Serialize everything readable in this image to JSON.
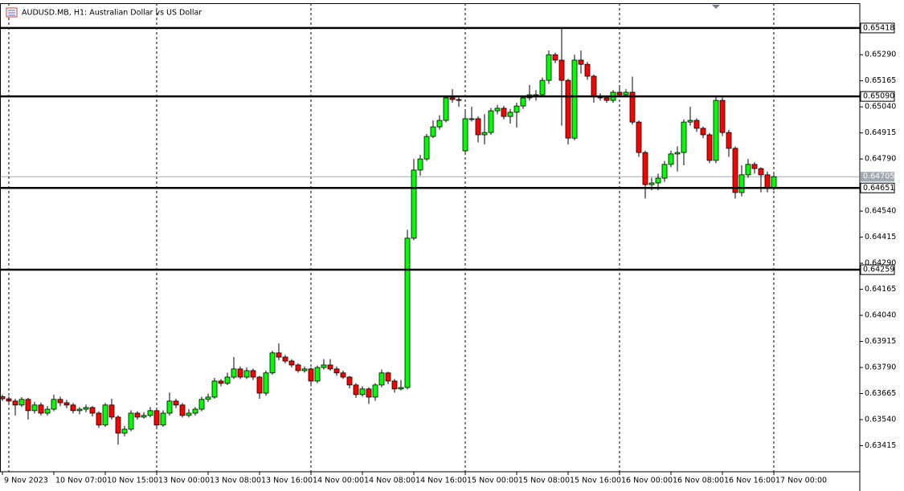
{
  "chart_data": {
    "type": "candlestick",
    "title": "AUDUSD.MB, H1:  Australian Dollar vs US Dollar",
    "up_color": "#00ff00",
    "down_color": "#ff0000",
    "level_color": "#000000",
    "last_color": "#a0a8b0",
    "ylim": [
      0.6329,
      0.65537
    ],
    "yticks": [
      0.63415,
      {
        "value": 0.6354,
        "label": "0.63540"
      },
      0.63665,
      {
        "value": 0.6379,
        "label": "0.63790"
      },
      0.63915,
      {
        "value": 0.6404,
        "label": "0.64040"
      },
      0.64165,
      {
        "value": 0.6429,
        "label": "0.64290"
      },
      0.64415,
      {
        "value": 0.6454,
        "label": "0.64540"
      },
      {
        "value": 0.6479,
        "label": "0.64790"
      },
      0.64915,
      {
        "value": 0.6504,
        "label": "0.65040"
      },
      0.65165,
      {
        "value": 0.6529,
        "label": "0.65290"
      }
    ],
    "levels": [
      0.65418,
      {
        "value": 0.6509,
        "label": "0.65090"
      },
      0.64651,
      0.64259
    ],
    "last_price": 0.64705,
    "categories": [
      "9 Nov 2023",
      null,
      null,
      null,
      null,
      null,
      null,
      null,
      "10 Nov 07:00",
      null,
      null,
      null,
      null,
      null,
      null,
      null,
      "10 Nov 15:00",
      null,
      null,
      null,
      null,
      null,
      null,
      null,
      "13 Nov 00:00",
      null,
      null,
      null,
      null,
      null,
      null,
      null,
      "13 Nov 08:00",
      null,
      null,
      null,
      null,
      null,
      null,
      null,
      "13 Nov 16:00",
      null,
      null,
      null,
      null,
      null,
      null,
      null,
      "14 Nov 00:00",
      null,
      null,
      null,
      null,
      null,
      null,
      null,
      "14 Nov 08:00",
      null,
      null,
      null,
      null,
      null,
      null,
      null,
      "14 Nov 16:00",
      null,
      null,
      null,
      null,
      null,
      null,
      null,
      "15 Nov 00:00",
      null,
      null,
      null,
      null,
      null,
      null,
      null,
      "15 Nov 08:00",
      null,
      null,
      null,
      null,
      null,
      null,
      null,
      "15 Nov 16:00",
      null,
      null,
      null,
      null,
      null,
      null,
      null,
      "16 Nov 00:00",
      null,
      null,
      null,
      null,
      null,
      null,
      null,
      "16 Nov 08:00",
      null,
      null,
      null,
      null,
      null,
      null,
      null,
      "16 Nov 16:00",
      null,
      null,
      null,
      null,
      null,
      null,
      null,
      "17 Nov 00:00"
    ],
    "open": [
      0.6365,
      0.6364,
      0.63629,
      0.6361,
      0.63637,
      0.63583,
      0.6361,
      0.63571,
      0.6359,
      0.63637,
      0.63621,
      0.6361,
      0.63583,
      0.6359,
      0.63598,
      0.63571,
      0.63514,
      0.6361,
      0.63552,
      0.63475,
      0.63494,
      0.63571,
      0.63552,
      0.6356,
      0.63583,
      0.63514,
      0.63571,
      0.63629,
      0.6361,
      0.6356,
      0.63571,
      0.6359,
      0.63637,
      0.63648,
      0.63725,
      0.63714,
      0.63744,
      0.63783,
      0.63744,
      0.63775,
      0.63744,
      0.63667,
      0.63764,
      0.6386,
      0.6384,
      0.63821,
      0.63802,
      0.63775,
      0.63783,
      0.63725,
      0.6379,
      0.63802,
      0.63783,
      0.63764,
      0.63744,
      0.63706,
      0.6366,
      0.63687,
      0.63648,
      0.63706,
      0.63764,
      0.63725,
      0.63687,
      0.63694,
      0.6441,
      0.64737,
      0.6479,
      0.64898,
      0.64944,
      0.64975,
      0.65083,
      0.65075,
      0.64829,
      0.64983,
      0.64983,
      0.64906,
      0.64917,
      0.65021,
      0.65033,
      0.64994,
      0.65014,
      0.65044,
      0.65083,
      0.65098,
      0.65098,
      0.65167,
      0.6529,
      0.65264,
      0.65167,
      0.6489,
      0.65264,
      0.65244,
      0.65187,
      0.6509,
      0.65083,
      0.65071,
      0.6511,
      0.65098,
      0.6511,
      0.64967,
      0.64821,
      0.64667,
      0.64675,
      0.64698,
      0.64764,
      0.64814,
      0.64821,
      0.64967,
      0.64975,
      0.64937,
      0.64906,
      0.64783,
      0.65071,
      0.64917,
      0.64841,
      0.64629,
      0.64714,
      0.64764,
      0.64744,
      0.64714,
      0.64648
    ],
    "high": [
      0.6366,
      0.63652,
      0.6364,
      0.63648,
      0.63645,
      0.63625,
      0.63622,
      0.63605,
      0.6366,
      0.6365,
      0.63635,
      0.6362,
      0.636,
      0.63612,
      0.63605,
      0.6358,
      0.6362,
      0.6364,
      0.6356,
      0.6351,
      0.63585,
      0.6358,
      0.63575,
      0.636,
      0.63595,
      0.63585,
      0.6367,
      0.6364,
      0.6362,
      0.6359,
      0.636,
      0.6365,
      0.63665,
      0.6374,
      0.63735,
      0.63765,
      0.6384,
      0.63795,
      0.6379,
      0.63785,
      0.6375,
      0.63775,
      0.6387,
      0.63905,
      0.6385,
      0.6383,
      0.6381,
      0.63795,
      0.6379,
      0.638,
      0.6383,
      0.6383,
      0.63795,
      0.63775,
      0.6375,
      0.63715,
      0.637,
      0.63695,
      0.63715,
      0.6378,
      0.6377,
      0.63735,
      0.6373,
      0.6445,
      0.6479,
      0.6481,
      0.6491,
      0.64975,
      0.65,
      0.65095,
      0.65125,
      0.65085,
      0.6502,
      0.6504,
      0.64995,
      0.65005,
      0.65035,
      0.6505,
      0.65045,
      0.6503,
      0.6506,
      0.65095,
      0.65145,
      0.6512,
      0.6518,
      0.6531,
      0.653,
      0.65418,
      0.65175,
      0.6529,
      0.6531,
      0.65255,
      0.65195,
      0.65105,
      0.65095,
      0.6512,
      0.65135,
      0.65125,
      0.65185,
      0.64975,
      0.6483,
      0.647,
      0.6472,
      0.6478,
      0.6483,
      0.6485,
      0.6498,
      0.6504,
      0.64985,
      0.64945,
      0.64915,
      0.6509,
      0.65085,
      0.6493,
      0.6485,
      0.6476,
      0.6479,
      0.64775,
      0.6475,
      0.6473,
      0.6472
    ],
    "low": [
      0.6363,
      0.63615,
      0.6356,
      0.636,
      0.6354,
      0.6357,
      0.6356,
      0.6356,
      0.6358,
      0.63605,
      0.63595,
      0.6357,
      0.63565,
      0.63575,
      0.63555,
      0.635,
      0.63505,
      0.6354,
      0.6342,
      0.6346,
      0.63485,
      0.6354,
      0.63545,
      0.6355,
      0.63505,
      0.63505,
      0.6356,
      0.63595,
      0.6355,
      0.6355,
      0.6356,
      0.6358,
      0.63625,
      0.6364,
      0.637,
      0.63705,
      0.63735,
      0.63735,
      0.63735,
      0.6373,
      0.6364,
      0.63655,
      0.63755,
      0.63825,
      0.6381,
      0.6379,
      0.63765,
      0.63765,
      0.637,
      0.63715,
      0.6378,
      0.63775,
      0.6375,
      0.63735,
      0.6369,
      0.63645,
      0.6365,
      0.63615,
      0.6363,
      0.63695,
      0.6371,
      0.6367,
      0.6368,
      0.63685,
      0.644,
      0.6471,
      0.6478,
      0.6489,
      0.6493,
      0.64965,
      0.6506,
      0.6504,
      0.6482,
      0.6497,
      0.6487,
      0.6486,
      0.64905,
      0.65005,
      0.6498,
      0.6496,
      0.6494,
      0.6503,
      0.6507,
      0.6507,
      0.6509,
      0.6515,
      0.6525,
      0.6495,
      0.6486,
      0.6488,
      0.652,
      0.6517,
      0.6506,
      0.6507,
      0.6506,
      0.6506,
      0.65085,
      0.6509,
      0.64955,
      0.648,
      0.646,
      0.6464,
      0.6464,
      0.6468,
      0.6475,
      0.6473,
      0.6476,
      0.6495,
      0.6492,
      0.6489,
      0.6477,
      0.6477,
      0.649,
      0.648,
      0.646,
      0.6461,
      0.647,
      0.6472,
      0.6463,
      0.6463,
      0.6464
    ],
    "close": [
      0.6364,
      0.63629,
      0.6361,
      0.63637,
      0.63583,
      0.6361,
      0.63571,
      0.6359,
      0.63637,
      0.63621,
      0.6361,
      0.63583,
      0.6359,
      0.63598,
      0.63571,
      0.63514,
      0.6361,
      0.63552,
      0.63475,
      0.63494,
      0.63571,
      0.63552,
      0.6356,
      0.63583,
      0.63514,
      0.63571,
      0.63629,
      0.6361,
      0.6356,
      0.63571,
      0.6359,
      0.63637,
      0.63648,
      0.63725,
      0.63714,
      0.63744,
      0.63783,
      0.63744,
      0.63775,
      0.63744,
      0.63667,
      0.63764,
      0.6386,
      0.6384,
      0.63821,
      0.63802,
      0.63775,
      0.63783,
      0.63725,
      0.6379,
      0.63802,
      0.63783,
      0.63764,
      0.63744,
      0.63706,
      0.6366,
      0.63687,
      0.63648,
      0.63706,
      0.63764,
      0.63725,
      0.63687,
      0.63694,
      0.6441,
      0.64737,
      0.6479,
      0.64898,
      0.64944,
      0.64975,
      0.65083,
      0.65075,
      0.65071,
      0.64983,
      0.64983,
      0.64906,
      0.64917,
      0.65021,
      0.65033,
      0.64994,
      0.65014,
      0.65044,
      0.65083,
      0.65098,
      0.65098,
      0.65167,
      0.6529,
      0.65264,
      0.65167,
      0.6489,
      0.65264,
      0.65244,
      0.65187,
      0.6509,
      0.65083,
      0.65071,
      0.6511,
      0.65098,
      0.6511,
      0.64967,
      0.64821,
      0.64667,
      0.64675,
      0.64698,
      0.64764,
      0.64814,
      0.64821,
      0.64967,
      0.64975,
      0.64937,
      0.64906,
      0.64783,
      0.65071,
      0.64917,
      0.64841,
      0.64629,
      0.64714,
      0.64764,
      0.64744,
      0.64714,
      0.64648,
      0.64705
    ]
  }
}
